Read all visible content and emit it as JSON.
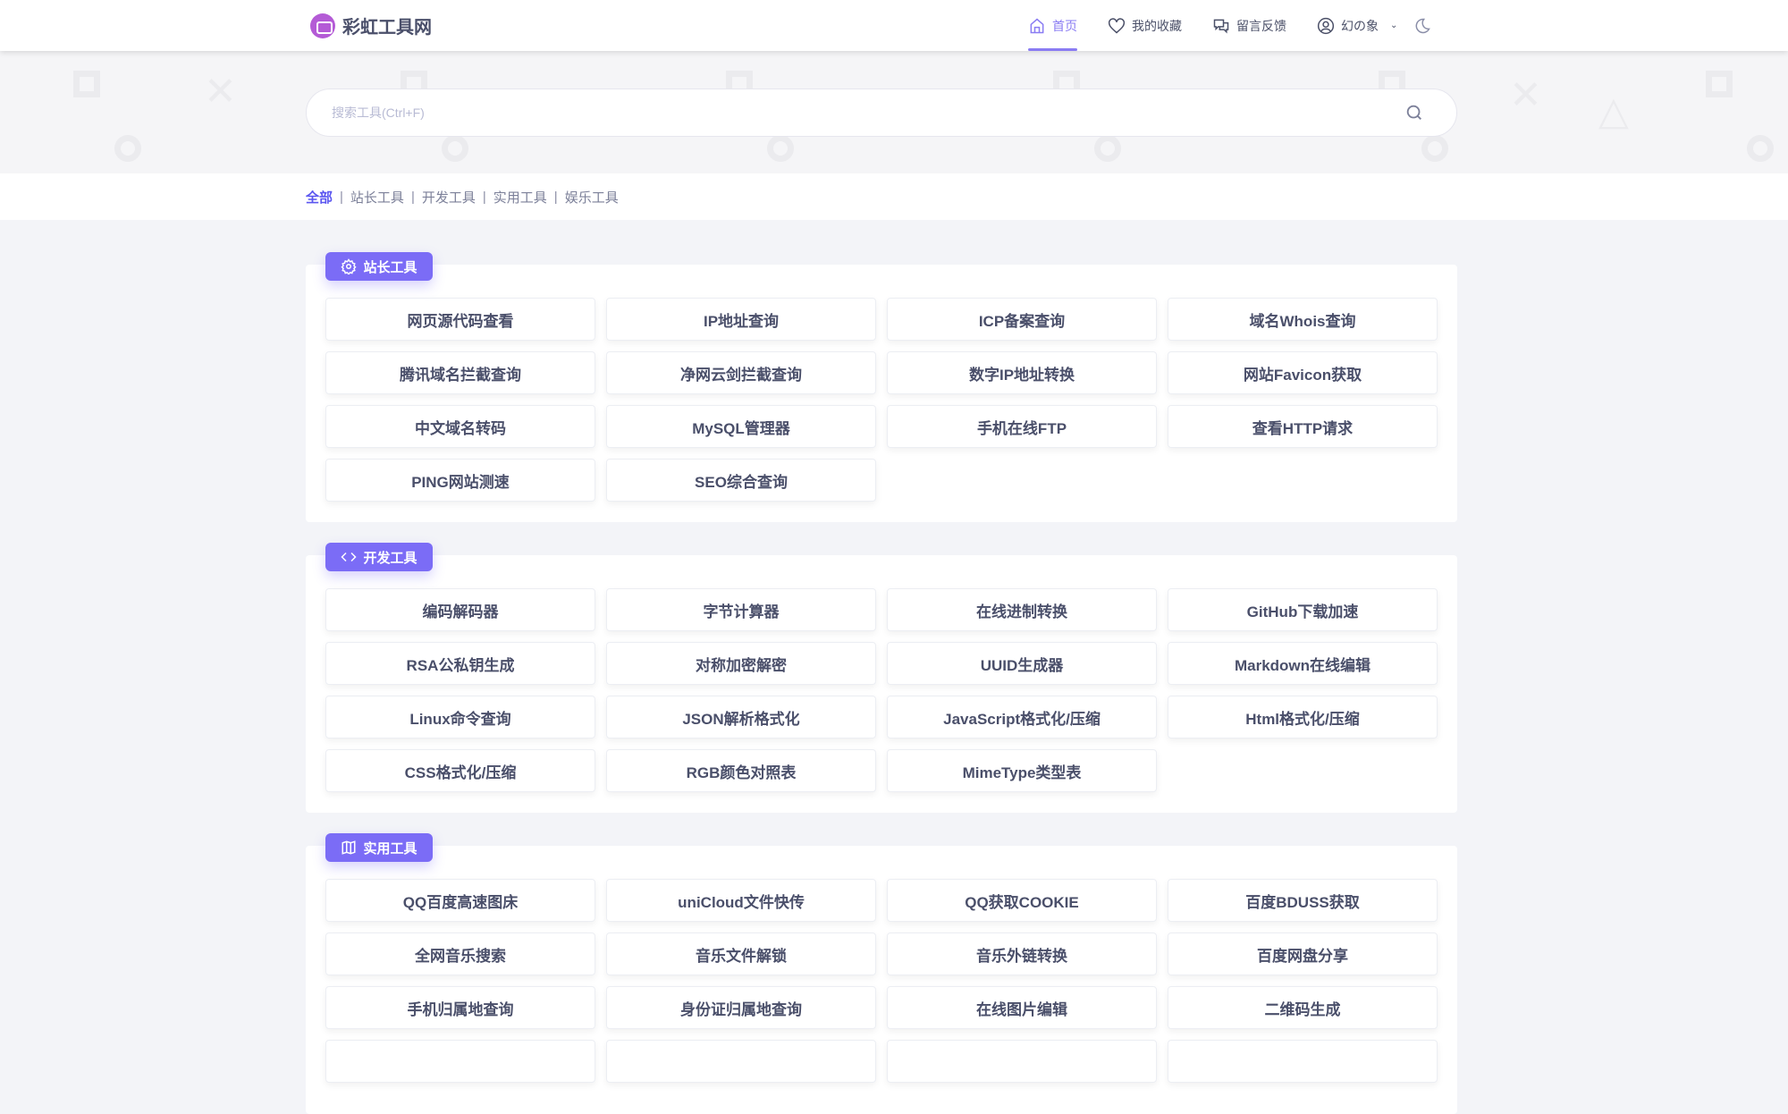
{
  "header": {
    "site_name": "彩虹工具网",
    "nav": [
      {
        "label": "首页",
        "icon": "home-icon",
        "active": true
      },
      {
        "label": "我的收藏",
        "icon": "heart-icon"
      },
      {
        "label": "留言反馈",
        "icon": "chat-icon"
      },
      {
        "label": "幻の象",
        "icon": "user-icon"
      }
    ],
    "theme_toggle_icon": "moon-icon"
  },
  "search": {
    "placeholder": "搜索工具(Ctrl+F)",
    "value": ""
  },
  "categories": {
    "items": [
      "全部",
      "站长工具",
      "开发工具",
      "实用工具",
      "娱乐工具"
    ],
    "active": "全部"
  },
  "colors": {
    "accent": "#7b6cf6",
    "active_link": "#5b56f0",
    "logo": "#b45bd6"
  },
  "sections": [
    {
      "title": "站长工具",
      "icon": "gear-icon",
      "tools": [
        "网页源代码查看",
        "IP地址查询",
        "ICP备案查询",
        "域名Whois查询",
        "腾讯域名拦截查询",
        "净网云剑拦截查询",
        "数字IP地址转换",
        "网站Favicon获取",
        "中文域名转码",
        "MySQL管理器",
        "手机在线FTP",
        "查看HTTP请求",
        "PING网站测速",
        "SEO综合查询"
      ]
    },
    {
      "title": "开发工具",
      "icon": "code-icon",
      "tools": [
        "编码解码器",
        "字节计算器",
        "在线进制转换",
        "GitHub下载加速",
        "RSA公私钥生成",
        "对称加密解密",
        "UUID生成器",
        "Markdown在线编辑",
        "Linux命令查询",
        "JSON解析格式化",
        "JavaScript格式化/压缩",
        "Html格式化/压缩",
        "CSS格式化/压缩",
        "RGB颜色对照表",
        "MimeType类型表"
      ]
    },
    {
      "title": "实用工具",
      "icon": "map-icon",
      "tools": [
        "QQ百度高速图床",
        "uniCloud文件快传",
        "QQ获取COOKIE",
        "百度BDUSS获取",
        "全网音乐搜索",
        "音乐文件解锁",
        "音乐外链转换",
        "百度网盘分享",
        "手机归属地查询",
        "身份证归属地查询",
        "在线图片编辑",
        "二维码生成"
      ]
    }
  ]
}
